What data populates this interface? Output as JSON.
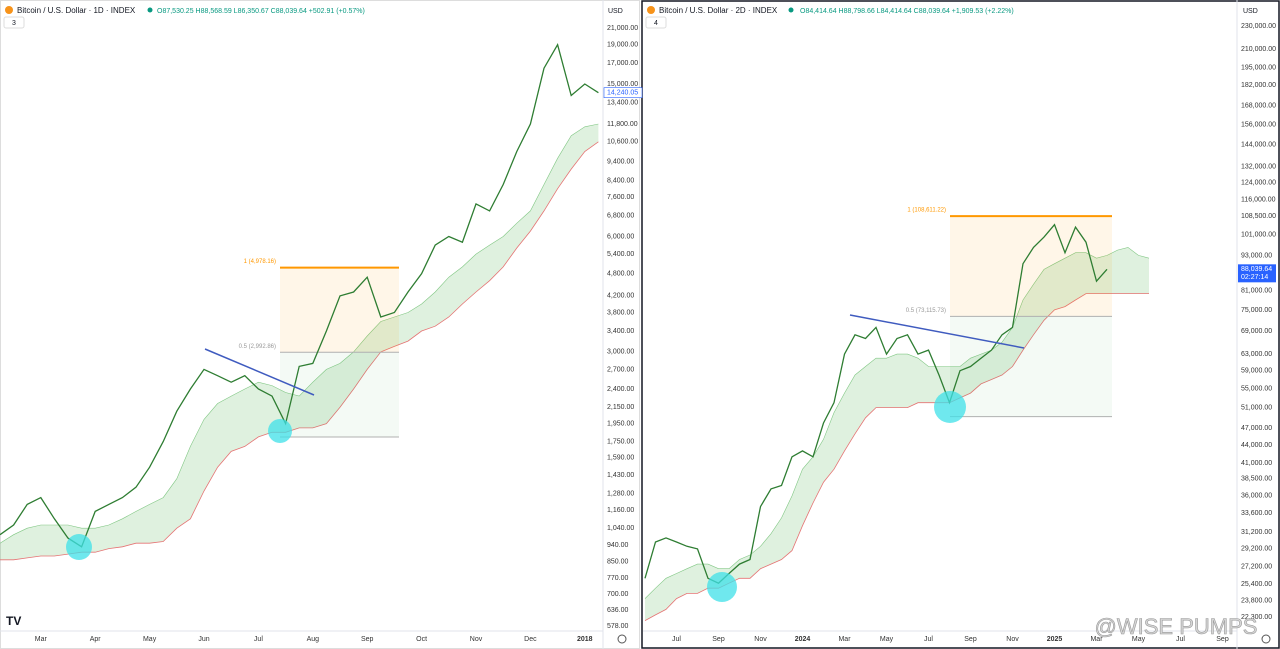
{
  "chart_data": [
    {
      "type": "line",
      "title": "Bitcoin / U.S. Dollar · 1D · INDEX",
      "ohlc": "O87,530.25 H88,568.59 L86,350.67 C88,039.64 +502.91 (+0.57%)",
      "currency": "USD",
      "pane_badge": "3",
      "log_scale": true,
      "color": "#2e7d32",
      "categories": [
        null,
        null,
        null,
        "Mar",
        null,
        null,
        null,
        "Apr",
        null,
        null,
        null,
        "May",
        null,
        null,
        null,
        "Jun",
        null,
        null,
        null,
        "Jul",
        null,
        null,
        null,
        "Aug",
        null,
        null,
        null,
        "Sep",
        null,
        null,
        null,
        "Oct",
        null,
        null,
        null,
        "Nov",
        null,
        null,
        null,
        "Dec",
        null,
        null,
        null,
        "2018",
        null
      ],
      "values": [
        1000,
        1060,
        1200,
        1250,
        1100,
        980,
        930,
        1150,
        1200,
        1250,
        1330,
        1500,
        1750,
        2100,
        2400,
        2700,
        2600,
        2500,
        2600,
        2400,
        2300,
        1950,
        2750,
        2800,
        3400,
        4200,
        4300,
        4700,
        3700,
        3800,
        4300,
        4800,
        5700,
        6000,
        5800,
        7300,
        7000,
        8200,
        10000,
        11800,
        16500,
        19000,
        14000,
        15000,
        14240
      ],
      "cloud_upper": [
        950,
        1000,
        1040,
        1060,
        1060,
        1060,
        1040,
        1040,
        1060,
        1100,
        1150,
        1200,
        1250,
        1400,
        1700,
        2000,
        2200,
        2300,
        2400,
        2500,
        2450,
        2350,
        2300,
        2500,
        2700,
        2800,
        3000,
        3300,
        3600,
        3700,
        3800,
        4000,
        4300,
        4700,
        5000,
        5400,
        5700,
        6000,
        6500,
        7000,
        8200,
        9600,
        11000,
        11600,
        11800
      ],
      "cloud_lower": [
        860,
        860,
        870,
        880,
        880,
        890,
        900,
        900,
        920,
        930,
        950,
        950,
        960,
        1040,
        1100,
        1300,
        1500,
        1650,
        1700,
        1800,
        1850,
        1850,
        1900,
        1900,
        1950,
        2150,
        2400,
        2700,
        3000,
        3100,
        3200,
        3400,
        3500,
        3700,
        4000,
        4300,
        4600,
        5000,
        5600,
        6200,
        7000,
        8000,
        9000,
        10000,
        10600
      ],
      "ylim": [
        564,
        23690
      ],
      "yticks": [
        {
          "value": 21000,
          "label": "21,000.00"
        },
        {
          "value": 19000,
          "label": "19,000.00"
        },
        {
          "value": 17000,
          "label": "17,000.00"
        },
        {
          "value": 15000,
          "label": "15,000.00"
        },
        {
          "value": 13400,
          "label": "13,400.00"
        },
        {
          "value": 11800,
          "label": "11,800.00"
        },
        {
          "value": 10600,
          "label": "10,600.00"
        },
        {
          "value": 9400,
          "label": "9,400.00"
        },
        {
          "value": 8400,
          "label": "8,400.00"
        },
        {
          "value": 7600,
          "label": "7,600.00"
        },
        {
          "value": 6800,
          "label": "6,800.00"
        },
        {
          "value": 6000,
          "label": "6,000.00"
        },
        {
          "value": 5400,
          "label": "5,400.00"
        },
        {
          "value": 4800,
          "label": "4,800.00"
        },
        {
          "value": 4200,
          "label": "4,200.00"
        },
        {
          "value": 3800,
          "label": "3,800.00"
        },
        {
          "value": 3400,
          "label": "3,400.00"
        },
        {
          "value": 3000,
          "label": "3,000.00"
        },
        {
          "value": 2700,
          "label": "2,700.00"
        },
        {
          "value": 2400,
          "label": "2,400.00"
        },
        {
          "value": 2150,
          "label": "2,150.00"
        },
        {
          "value": 1950,
          "label": "1,950.00"
        },
        {
          "value": 1750,
          "label": "1,750.00"
        },
        {
          "value": 1590,
          "label": "1,590.00"
        },
        {
          "value": 1430,
          "label": "1,430.00"
        },
        {
          "value": 1280,
          "label": "1,280.00"
        },
        {
          "value": 1160,
          "label": "1,160.00"
        },
        {
          "value": 1040,
          "label": "1,040.00"
        },
        {
          "value": 940,
          "label": "940.00"
        },
        {
          "value": 850,
          "label": "850.00"
        },
        {
          "value": 770,
          "label": "770.00"
        },
        {
          "value": 700,
          "label": "700.00"
        },
        {
          "value": 636,
          "label": "636.00"
        },
        {
          "value": 578,
          "label": "578.00"
        }
      ],
      "fib_levels": [
        {
          "value": 4978.16,
          "label": "1 (4,978.16)"
        },
        {
          "value": 2992.86,
          "label": "0.5 (2,992.86)"
        },
        {
          "value": 1799
        }
      ],
      "last_price": {
        "value": 14240.05,
        "label": "14,240.05"
      }
    },
    {
      "type": "line",
      "title": "Bitcoin / U.S. Dollar · 2D · INDEX",
      "ohlc": "O84,414.64 H88,798.66 L84,414.64 C88,039.64 +1,909.53 (+2.22%)",
      "currency": "USD",
      "pane_badge": "4",
      "log_scale": true,
      "color": "#2e7d32",
      "categories": [
        null,
        null,
        null,
        "Jul",
        null,
        null,
        null,
        "Sep",
        null,
        null,
        null,
        "Nov",
        null,
        null,
        null,
        "2024",
        null,
        null,
        null,
        "Mar",
        null,
        null,
        null,
        "May",
        null,
        null,
        null,
        "Jul",
        null,
        null,
        null,
        "Sep",
        null,
        null,
        null,
        "Nov",
        null,
        null,
        null,
        "2025",
        null,
        null,
        null,
        "Mar",
        null,
        null,
        null,
        "May",
        null,
        null,
        null,
        "Jul",
        null,
        null,
        null,
        "Sep",
        null
      ],
      "values": [
        26000,
        30000,
        30500,
        30000,
        29500,
        29200,
        26000,
        25500,
        26500,
        27500,
        28000,
        34500,
        37000,
        37500,
        42000,
        43000,
        42000,
        48000,
        52000,
        63000,
        68000,
        67000,
        70000,
        63000,
        67000,
        68000,
        63000,
        64000,
        58000,
        52000,
        59000,
        60000,
        62000,
        64000,
        68000,
        70000,
        90000,
        96000,
        100000,
        105000,
        94000,
        104000,
        98000,
        84000,
        88039.64,
        null,
        null,
        null,
        null,
        null,
        null,
        null,
        null,
        null,
        null,
        null,
        null
      ],
      "cloud_upper": [
        24000,
        25000,
        26000,
        26500,
        27000,
        27500,
        27500,
        27000,
        27000,
        28000,
        28500,
        29500,
        31000,
        33000,
        36000,
        40000,
        42000,
        45000,
        50000,
        54000,
        58000,
        60000,
        62000,
        62000,
        63000,
        63000,
        62000,
        60000,
        60000,
        60000,
        60000,
        62000,
        63000,
        64000,
        66000,
        70000,
        78000,
        83000,
        88000,
        90000,
        92000,
        94000,
        94000,
        92000,
        93000,
        95000,
        96000,
        93000,
        92000,
        null,
        null,
        null,
        null,
        null,
        null,
        null,
        null
      ],
      "cloud_lower": [
        22000,
        22500,
        23000,
        24000,
        24500,
        24500,
        25000,
        25000,
        25500,
        26000,
        26000,
        27000,
        27500,
        28000,
        29000,
        32000,
        35000,
        38000,
        40000,
        43000,
        46000,
        49000,
        51000,
        51000,
        51000,
        51000,
        52000,
        52000,
        52000,
        52000,
        53000,
        54000,
        56000,
        57000,
        58000,
        60000,
        64000,
        68000,
        72000,
        75000,
        76000,
        78000,
        80000,
        80000,
        80000,
        80000,
        80000,
        80000,
        80000,
        null,
        null,
        null,
        null,
        null,
        null,
        null,
        null
      ],
      "ylim": [
        21200,
        247000
      ],
      "yticks": [
        {
          "value": 230000,
          "label": "230,000.00"
        },
        {
          "value": 210000,
          "label": "210,000.00"
        },
        {
          "value": 195000,
          "label": "195,000.00"
        },
        {
          "value": 182000,
          "label": "182,000.00"
        },
        {
          "value": 168000,
          "label": "168,000.00"
        },
        {
          "value": 156000,
          "label": "156,000.00"
        },
        {
          "value": 144000,
          "label": "144,000.00"
        },
        {
          "value": 132000,
          "label": "132,000.00"
        },
        {
          "value": 124000,
          "label": "124,000.00"
        },
        {
          "value": 116000,
          "label": "116,000.00"
        },
        {
          "value": 108500,
          "label": "108,500.00"
        },
        {
          "value": 101000,
          "label": "101,000.00"
        },
        {
          "value": 93000,
          "label": "93,000.00"
        },
        {
          "value": 81000,
          "label": "81,000.00"
        },
        {
          "value": 75000,
          "label": "75,000.00"
        },
        {
          "value": 69000,
          "label": "69,000.00"
        },
        {
          "value": 63000,
          "label": "63,000.00"
        },
        {
          "value": 59000,
          "label": "59,000.00"
        },
        {
          "value": 55000,
          "label": "55,000.00"
        },
        {
          "value": 51000,
          "label": "51,000.00"
        },
        {
          "value": 47000,
          "label": "47,000.00"
        },
        {
          "value": 44000,
          "label": "44,000.00"
        },
        {
          "value": 41000,
          "label": "41,000.00"
        },
        {
          "value": 38500,
          "label": "38,500.00"
        },
        {
          "value": 36000,
          "label": "36,000.00"
        },
        {
          "value": 33600,
          "label": "33,600.00"
        },
        {
          "value": 31200,
          "label": "31,200.00"
        },
        {
          "value": 29200,
          "label": "29,200.00"
        },
        {
          "value": 27200,
          "label": "27,200.00"
        },
        {
          "value": 25400,
          "label": "25,400.00"
        },
        {
          "value": 23800,
          "label": "23,800.00"
        },
        {
          "value": 22300,
          "label": "22,300.00"
        }
      ],
      "fib_levels": [
        {
          "value": 108611.22,
          "label": "1 (108,611.22)"
        },
        {
          "value": 73115.73,
          "label": "0.5 (73,115.73)"
        },
        {
          "value": 49220
        }
      ],
      "last_price": {
        "value": 88039.64,
        "label": "88,039.64",
        "countdown": "02:27:14"
      }
    }
  ],
  "watermark": "@WISE PUMPS"
}
